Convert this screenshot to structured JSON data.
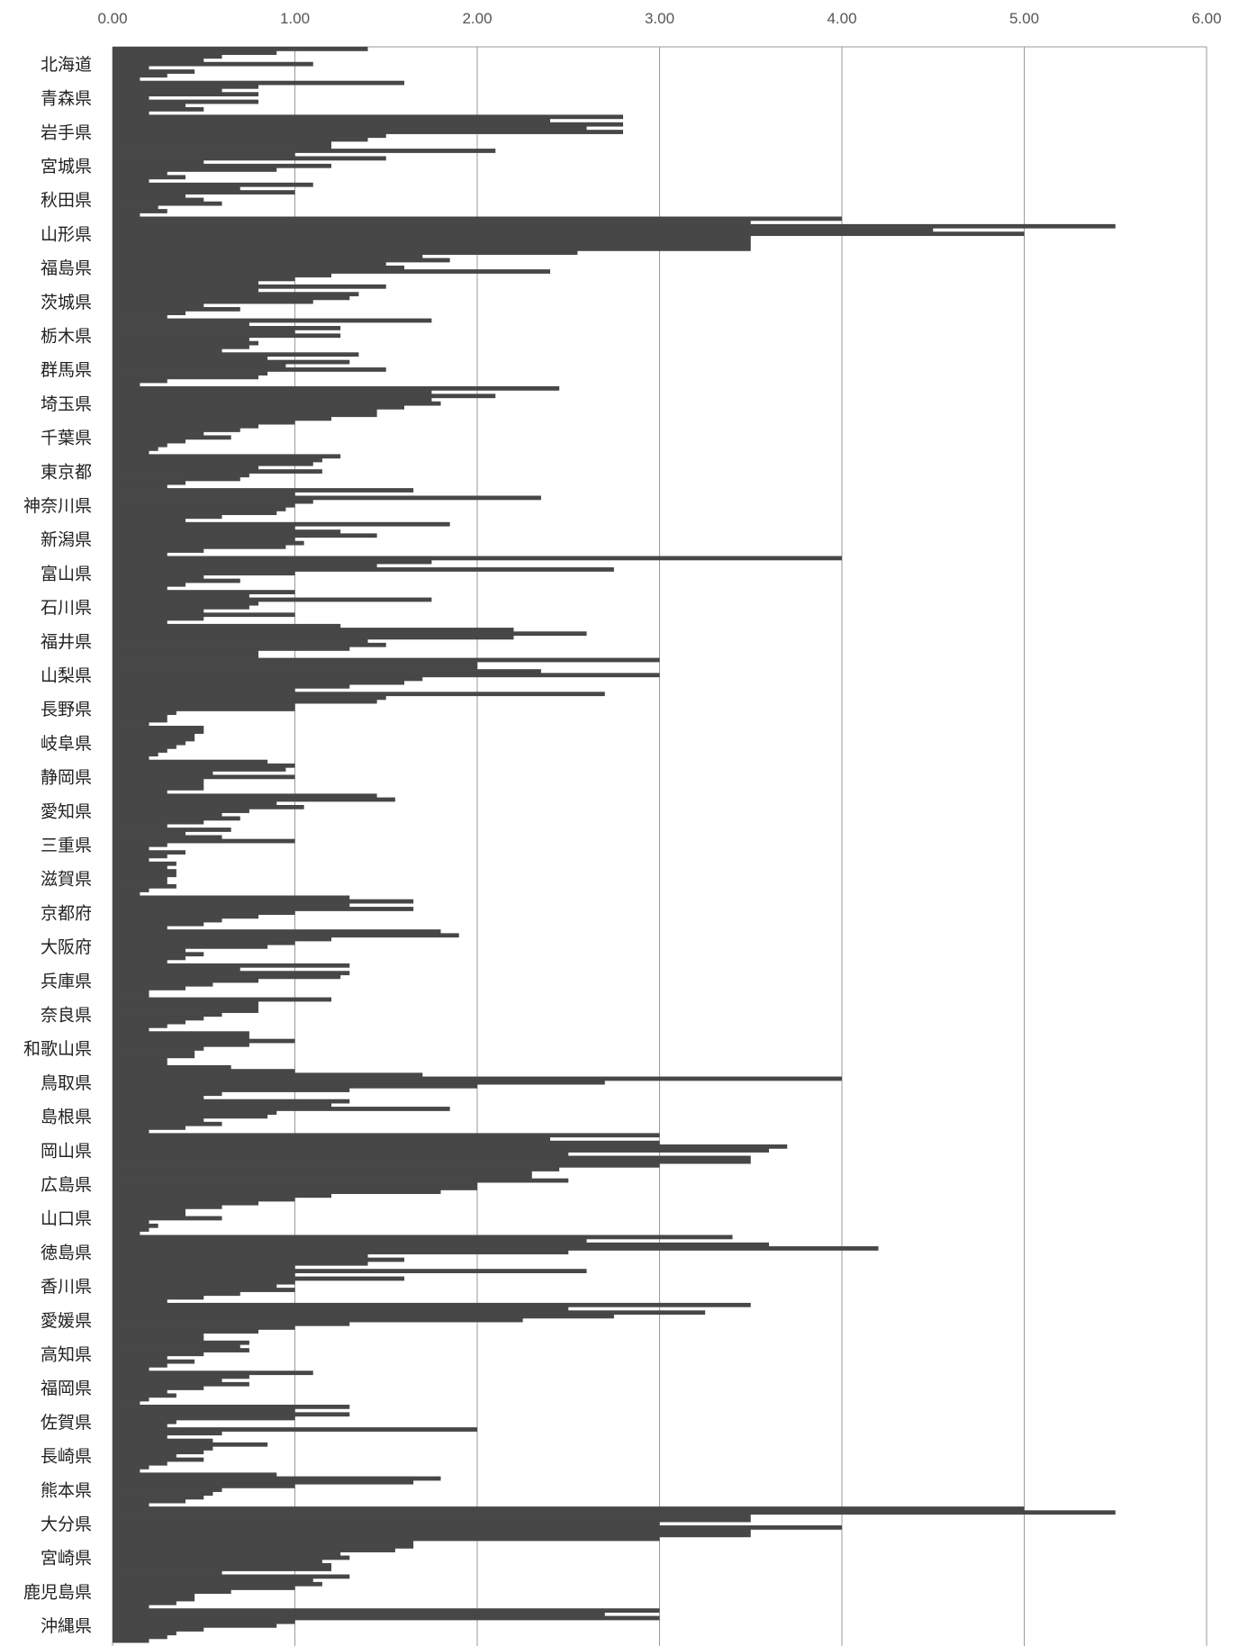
{
  "chart_data": {
    "type": "bar",
    "orientation": "horizontal",
    "title": "",
    "xlabel": "",
    "ylabel": "",
    "xlim": [
      0,
      6
    ],
    "x_ticks": [
      "0.00",
      "1.00",
      "2.00",
      "3.00",
      "4.00",
      "5.00",
      "6.00"
    ],
    "x_tick_values": [
      0,
      1,
      2,
      3,
      4,
      5,
      6
    ],
    "grid": true,
    "bar_color": "#474747",
    "categories": [
      {
        "name": "北海道",
        "values": [
          1.4,
          0.9,
          0.6,
          0.5,
          1.1,
          0.2,
          0.45,
          0.3,
          0.15
        ]
      },
      {
        "name": "青森県",
        "values": [
          1.6,
          0.8,
          0.6,
          0.8,
          0.2,
          0.8,
          0.4,
          0.5,
          0.2
        ]
      },
      {
        "name": "岩手県",
        "values": [
          2.8,
          2.4,
          2.8,
          2.6,
          2.8,
          1.5,
          1.4,
          1.2,
          1.2
        ]
      },
      {
        "name": "宮城県",
        "values": [
          2.1,
          1.0,
          1.5,
          0.5,
          1.2,
          0.9,
          0.3,
          0.4,
          0.2
        ]
      },
      {
        "name": "秋田県",
        "values": [
          1.1,
          0.7,
          1.0,
          0.4,
          0.5,
          0.6,
          0.25,
          0.3,
          0.15
        ]
      },
      {
        "name": "山形県",
        "values": [
          4.0,
          3.5,
          5.5,
          4.5,
          5.0,
          3.5,
          3.5,
          3.5,
          3.5
        ]
      },
      {
        "name": "福島県",
        "values": [
          2.55,
          1.7,
          1.85,
          1.5,
          1.6,
          2.4,
          1.2,
          1.0,
          0.8
        ]
      },
      {
        "name": "茨城県",
        "values": [
          1.5,
          0.8,
          1.35,
          1.3,
          1.1,
          0.5,
          0.7,
          0.4,
          0.3
        ]
      },
      {
        "name": "栃木県",
        "values": [
          1.75,
          0.75,
          1.25,
          1.0,
          1.25,
          0.75,
          0.8,
          0.75,
          0.6
        ]
      },
      {
        "name": "群馬県",
        "values": [
          1.35,
          0.85,
          1.3,
          0.95,
          1.5,
          0.85,
          0.8,
          0.3,
          0.15
        ]
      },
      {
        "name": "埼玉県",
        "values": [
          2.45,
          1.75,
          2.1,
          1.75,
          1.8,
          1.6,
          1.45,
          1.45,
          1.2
        ]
      },
      {
        "name": "千葉県",
        "values": [
          1.0,
          0.8,
          0.7,
          0.5,
          0.65,
          0.4,
          0.3,
          0.25,
          0.2
        ]
      },
      {
        "name": "東京都",
        "values": [
          1.25,
          1.15,
          1.1,
          0.8,
          1.15,
          0.75,
          0.7,
          0.4,
          0.3
        ]
      },
      {
        "name": "神奈川県",
        "values": [
          1.65,
          1.0,
          2.35,
          1.1,
          1.0,
          0.95,
          0.9,
          0.6,
          0.4
        ]
      },
      {
        "name": "新潟県",
        "values": [
          1.85,
          1.0,
          1.25,
          1.45,
          1.0,
          1.05,
          0.95,
          0.5,
          0.3
        ]
      },
      {
        "name": "富山県",
        "values": [
          4.0,
          1.75,
          1.45,
          2.75,
          1.0,
          0.5,
          0.7,
          0.4,
          0.3
        ]
      },
      {
        "name": "石川県",
        "values": [
          1.0,
          0.75,
          1.75,
          0.8,
          0.75,
          0.5,
          1.0,
          0.5,
          0.3
        ]
      },
      {
        "name": "福井県",
        "values": [
          1.25,
          2.2,
          2.6,
          2.2,
          1.4,
          1.5,
          1.3,
          0.8,
          0.8
        ]
      },
      {
        "name": "山梨県",
        "values": [
          3.0,
          2.0,
          2.0,
          2.35,
          3.0,
          1.7,
          1.6,
          1.3,
          1.0
        ]
      },
      {
        "name": "長野県",
        "values": [
          2.7,
          1.5,
          1.45,
          1.0,
          1.0,
          0.35,
          0.3,
          0.3,
          0.2
        ]
      },
      {
        "name": "岐阜県",
        "values": [
          0.5,
          0.5,
          0.45,
          0.45,
          0.4,
          0.35,
          0.3,
          0.25,
          0.2
        ]
      },
      {
        "name": "静岡県",
        "values": [
          0.85,
          1.0,
          0.95,
          0.55,
          1.0,
          0.5,
          0.5,
          0.5,
          0.3
        ]
      },
      {
        "name": "愛知県",
        "values": [
          1.45,
          1.55,
          0.9,
          1.05,
          0.75,
          0.6,
          0.7,
          0.5,
          0.3
        ]
      },
      {
        "name": "三重県",
        "values": [
          0.65,
          0.4,
          0.6,
          1.0,
          0.3,
          0.2,
          0.4,
          0.3,
          0.2
        ]
      },
      {
        "name": "滋賀県",
        "values": [
          0.35,
          0.3,
          0.35,
          0.35,
          0.3,
          0.3,
          0.35,
          0.2,
          0.15
        ]
      },
      {
        "name": "京都府",
        "values": [
          1.3,
          1.65,
          1.3,
          1.65,
          1.0,
          0.8,
          0.6,
          0.5,
          0.3
        ]
      },
      {
        "name": "大阪府",
        "values": [
          1.8,
          1.9,
          1.2,
          1.0,
          0.85,
          0.4,
          0.5,
          0.4,
          0.3
        ]
      },
      {
        "name": "兵庫県",
        "values": [
          1.3,
          0.7,
          1.3,
          1.25,
          0.8,
          0.55,
          0.4,
          0.2,
          0.2
        ]
      },
      {
        "name": "奈良県",
        "values": [
          1.2,
          0.8,
          0.8,
          0.8,
          0.6,
          0.5,
          0.4,
          0.3,
          0.2
        ]
      },
      {
        "name": "和歌山県",
        "values": [
          0.75,
          0.75,
          1.0,
          0.75,
          0.5,
          0.45,
          0.45,
          0.3,
          0.3
        ]
      },
      {
        "name": "鳥取県",
        "values": [
          0.65,
          1.0,
          1.7,
          4.0,
          2.7,
          2.0,
          1.3,
          0.6,
          0.5
        ]
      },
      {
        "name": "島根県",
        "values": [
          1.3,
          1.2,
          1.85,
          0.9,
          0.85,
          0.5,
          0.6,
          0.4,
          0.2
        ]
      },
      {
        "name": "岡山県",
        "values": [
          3.0,
          2.4,
          3.0,
          3.7,
          3.6,
          2.5,
          3.5,
          3.5,
          3.0
        ]
      },
      {
        "name": "広島県",
        "values": [
          2.45,
          2.3,
          2.3,
          2.5,
          2.0,
          2.0,
          1.8,
          1.2,
          1.0
        ]
      },
      {
        "name": "山口県",
        "values": [
          0.8,
          0.6,
          0.4,
          0.4,
          0.6,
          0.2,
          0.25,
          0.2,
          0.15
        ]
      },
      {
        "name": "徳島県",
        "values": [
          3.4,
          2.6,
          3.6,
          4.2,
          2.5,
          1.4,
          1.6,
          1.4,
          1.0
        ]
      },
      {
        "name": "香川県",
        "values": [
          2.6,
          1.0,
          1.6,
          1.0,
          0.9,
          1.0,
          0.7,
          0.5,
          0.3
        ]
      },
      {
        "name": "愛媛県",
        "values": [
          3.5,
          2.5,
          3.25,
          2.75,
          2.25,
          1.3,
          1.0,
          0.8,
          0.5
        ]
      },
      {
        "name": "高知県",
        "values": [
          0.5,
          0.75,
          0.7,
          0.75,
          0.5,
          0.3,
          0.45,
          0.3,
          0.2
        ]
      },
      {
        "name": "福岡県",
        "values": [
          1.1,
          0.75,
          0.6,
          0.75,
          0.5,
          0.3,
          0.35,
          0.2,
          0.15
        ]
      },
      {
        "name": "佐賀県",
        "values": [
          1.3,
          1.0,
          1.3,
          1.0,
          0.35,
          0.3,
          2.0,
          0.6,
          0.3
        ]
      },
      {
        "name": "長崎県",
        "values": [
          0.55,
          0.85,
          0.55,
          0.5,
          0.35,
          0.5,
          0.3,
          0.2,
          0.15
        ]
      },
      {
        "name": "熊本県",
        "values": [
          0.9,
          1.8,
          1.65,
          1.0,
          0.6,
          0.55,
          0.5,
          0.4,
          0.2
        ]
      },
      {
        "name": "大分県",
        "values": [
          5.0,
          5.5,
          3.5,
          3.5,
          3.0,
          4.0,
          3.5,
          3.5,
          3.0
        ]
      },
      {
        "name": "宮崎県",
        "values": [
          1.65,
          1.65,
          1.55,
          1.25,
          1.3,
          1.15,
          1.2,
          1.2,
          0.6
        ]
      },
      {
        "name": "鹿児島県",
        "values": [
          1.3,
          1.1,
          1.15,
          1.0,
          0.65,
          0.45,
          0.45,
          0.35,
          0.2
        ]
      },
      {
        "name": "沖縄県",
        "values": [
          3.0,
          2.7,
          3.0,
          1.0,
          0.9,
          0.5,
          0.35,
          0.3,
          0.2
        ]
      }
    ]
  }
}
